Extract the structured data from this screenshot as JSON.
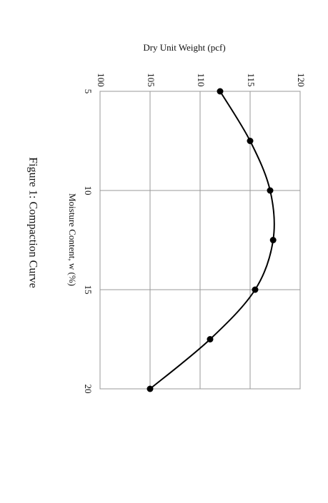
{
  "chart_data": {
    "type": "line",
    "title": "Dry Unit Weight (pcf)",
    "x_label": "Moisture Content, w (%)",
    "caption": "Figure 1: Compaction Curve",
    "x": [
      5,
      7.5,
      10,
      12.5,
      15,
      17.5,
      20
    ],
    "series": [
      {
        "name": "Compaction curve",
        "color": "#000000",
        "values": [
          112,
          115,
          117,
          117.3,
          115.5,
          111,
          105
        ]
      }
    ],
    "xlim": [
      5,
      20
    ],
    "xticks": [
      5,
      10,
      15,
      20
    ],
    "ylim": [
      100,
      120
    ],
    "yticks": [
      100,
      105,
      110,
      115,
      120
    ],
    "grid": true
  }
}
